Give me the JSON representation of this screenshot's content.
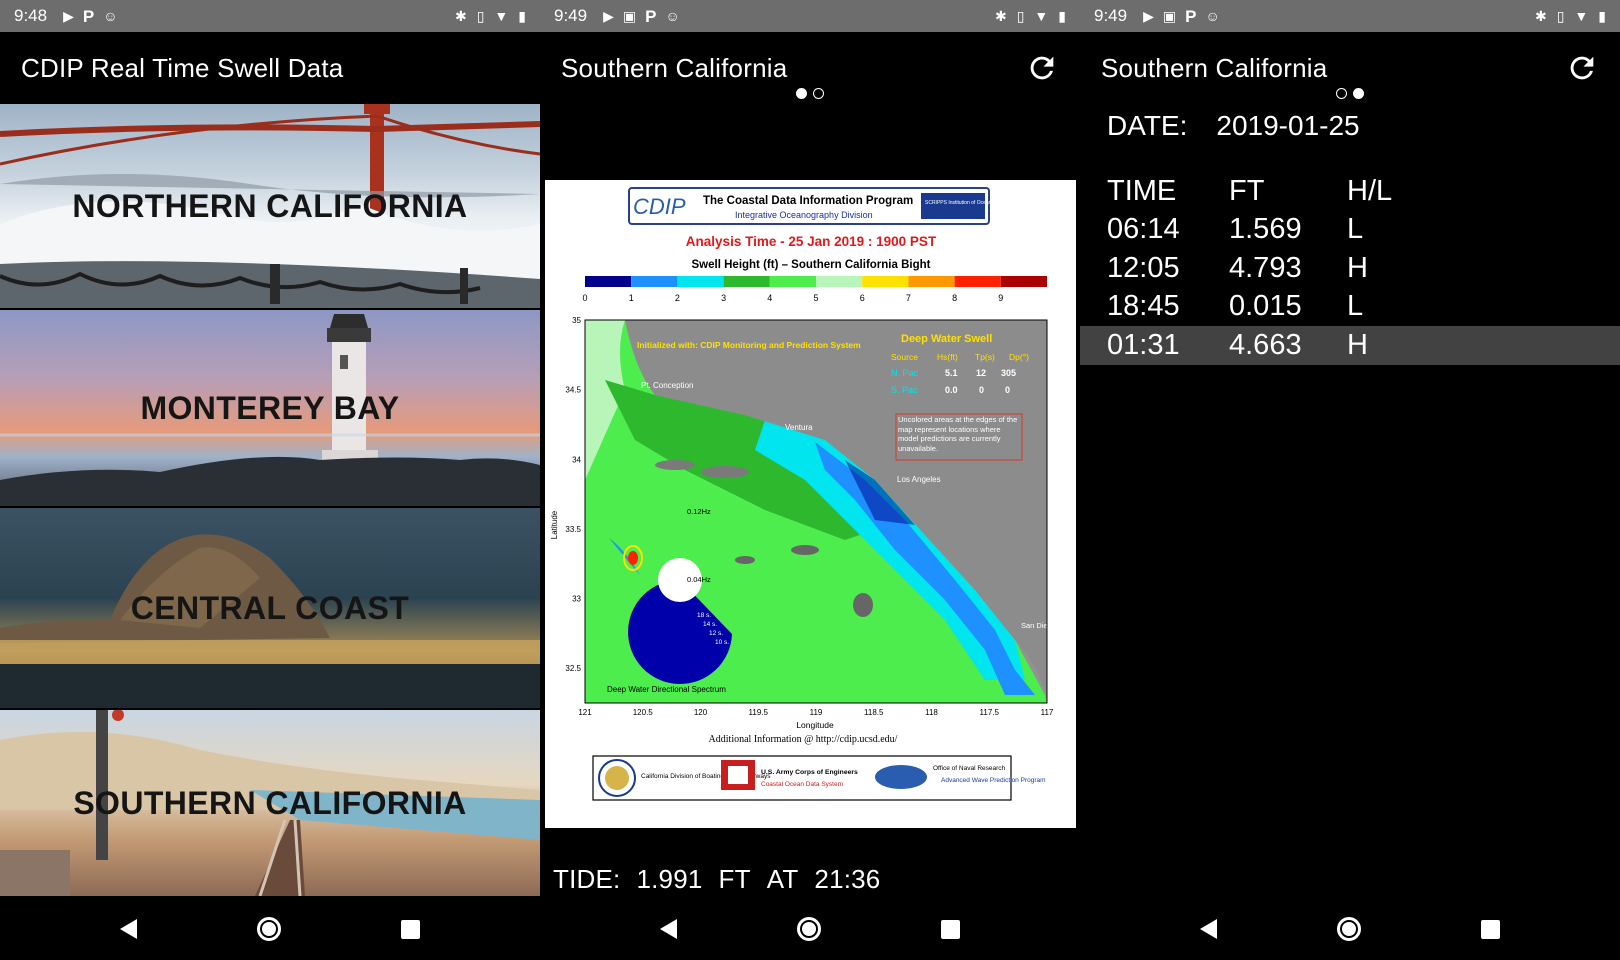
{
  "screen1": {
    "status": {
      "time": "9:48"
    },
    "title": "CDIP Real Time Swell Data",
    "regions": [
      {
        "label": "NORTHERN CALIFORNIA"
      },
      {
        "label": "MONTEREY BAY"
      },
      {
        "label": "CENTRAL COAST"
      },
      {
        "label": "SOUTHERN CALIFORNIA"
      }
    ]
  },
  "screen2": {
    "status": {
      "time": "9:49"
    },
    "title": "Southern California",
    "map": {
      "program": "The Coastal Data Information Program",
      "division": "Integrative Oceanography Division",
      "logo": "CDIP",
      "scripps": "SCRIPPS Institution of Oceanography",
      "analysis_time": "Analysis Time -  25 Jan 2019 : 1900 PST",
      "heading": "Swell Height (ft) – Southern California Bight",
      "scale_ticks": [
        "0",
        "1",
        "2",
        "3",
        "4",
        "5",
        "6",
        "7",
        "8",
        "9"
      ],
      "scale_colors": [
        "#00008b",
        "#1e90ff",
        "#00e5ee",
        "#2eb82e",
        "#4ced4c",
        "#b8f5b8",
        "#ffe100",
        "#ff9900",
        "#ff2200",
        "#aa0000"
      ],
      "y_ticks": [
        "35",
        "34.5",
        "34",
        "33.5",
        "33",
        "32.5"
      ],
      "x_ticks": [
        "121",
        "120.5",
        "120",
        "119.5",
        "119",
        "118.5",
        "118",
        "117.5",
        "117"
      ],
      "ylabel": "Latitude",
      "xlabel": "Longitude",
      "init_text": "Initialized with: CDIP Monitoring and Prediction System",
      "pt_conception": "Pt. Conception",
      "ventura": "Ventura",
      "los_angeles": "Los Angeles",
      "san_diego": "San Diego",
      "deep_title": "Deep Water Swell",
      "deep_headers": [
        "Source",
        "Hs(ft)",
        "Tp(s)",
        "Dp(°)"
      ],
      "deep_rows": [
        [
          "N. Pac",
          "5.1",
          "12",
          "305"
        ],
        [
          "S. Pac",
          "0.0",
          "0",
          "0"
        ]
      ],
      "uncolored": "Uncolored areas at the edges of the map represent locations where model predictions are currently unavailable.",
      "spectrum_label": "Deep Water Directional Spectrum",
      "hz1": "0.12Hz",
      "hz2": "0.04Hz",
      "periods": [
        "18 s.",
        "14 s.",
        "12 s.",
        "10 s."
      ],
      "additional": "Additional Information @ http://cdip.ucsd.edu/",
      "sponsor1": "California Division of Boating and Waterways",
      "sponsor2": "U.S. Army Corps of Engineers",
      "sponsor2b": "Coastal Ocean Data System",
      "sponsor3": "Office of Naval Research",
      "sponsor3b": "Advanced Wave Prediction Program"
    },
    "tide": {
      "label": "TIDE:",
      "value": "1.991",
      "unit": "FT",
      "at": "AT",
      "time": "21:36"
    }
  },
  "screen3": {
    "status": {
      "time": "9:49"
    },
    "title": "Southern California",
    "date_label": "DATE:",
    "date_value": "2019-01-25",
    "headers": [
      "TIME",
      "FT",
      "H/L"
    ],
    "rows": [
      [
        "06:14",
        "1.569",
        "L"
      ],
      [
        "12:05",
        "4.793",
        "H"
      ],
      [
        "18:45",
        "0.015",
        "L"
      ],
      [
        "01:31",
        "4.663",
        "H"
      ]
    ]
  }
}
